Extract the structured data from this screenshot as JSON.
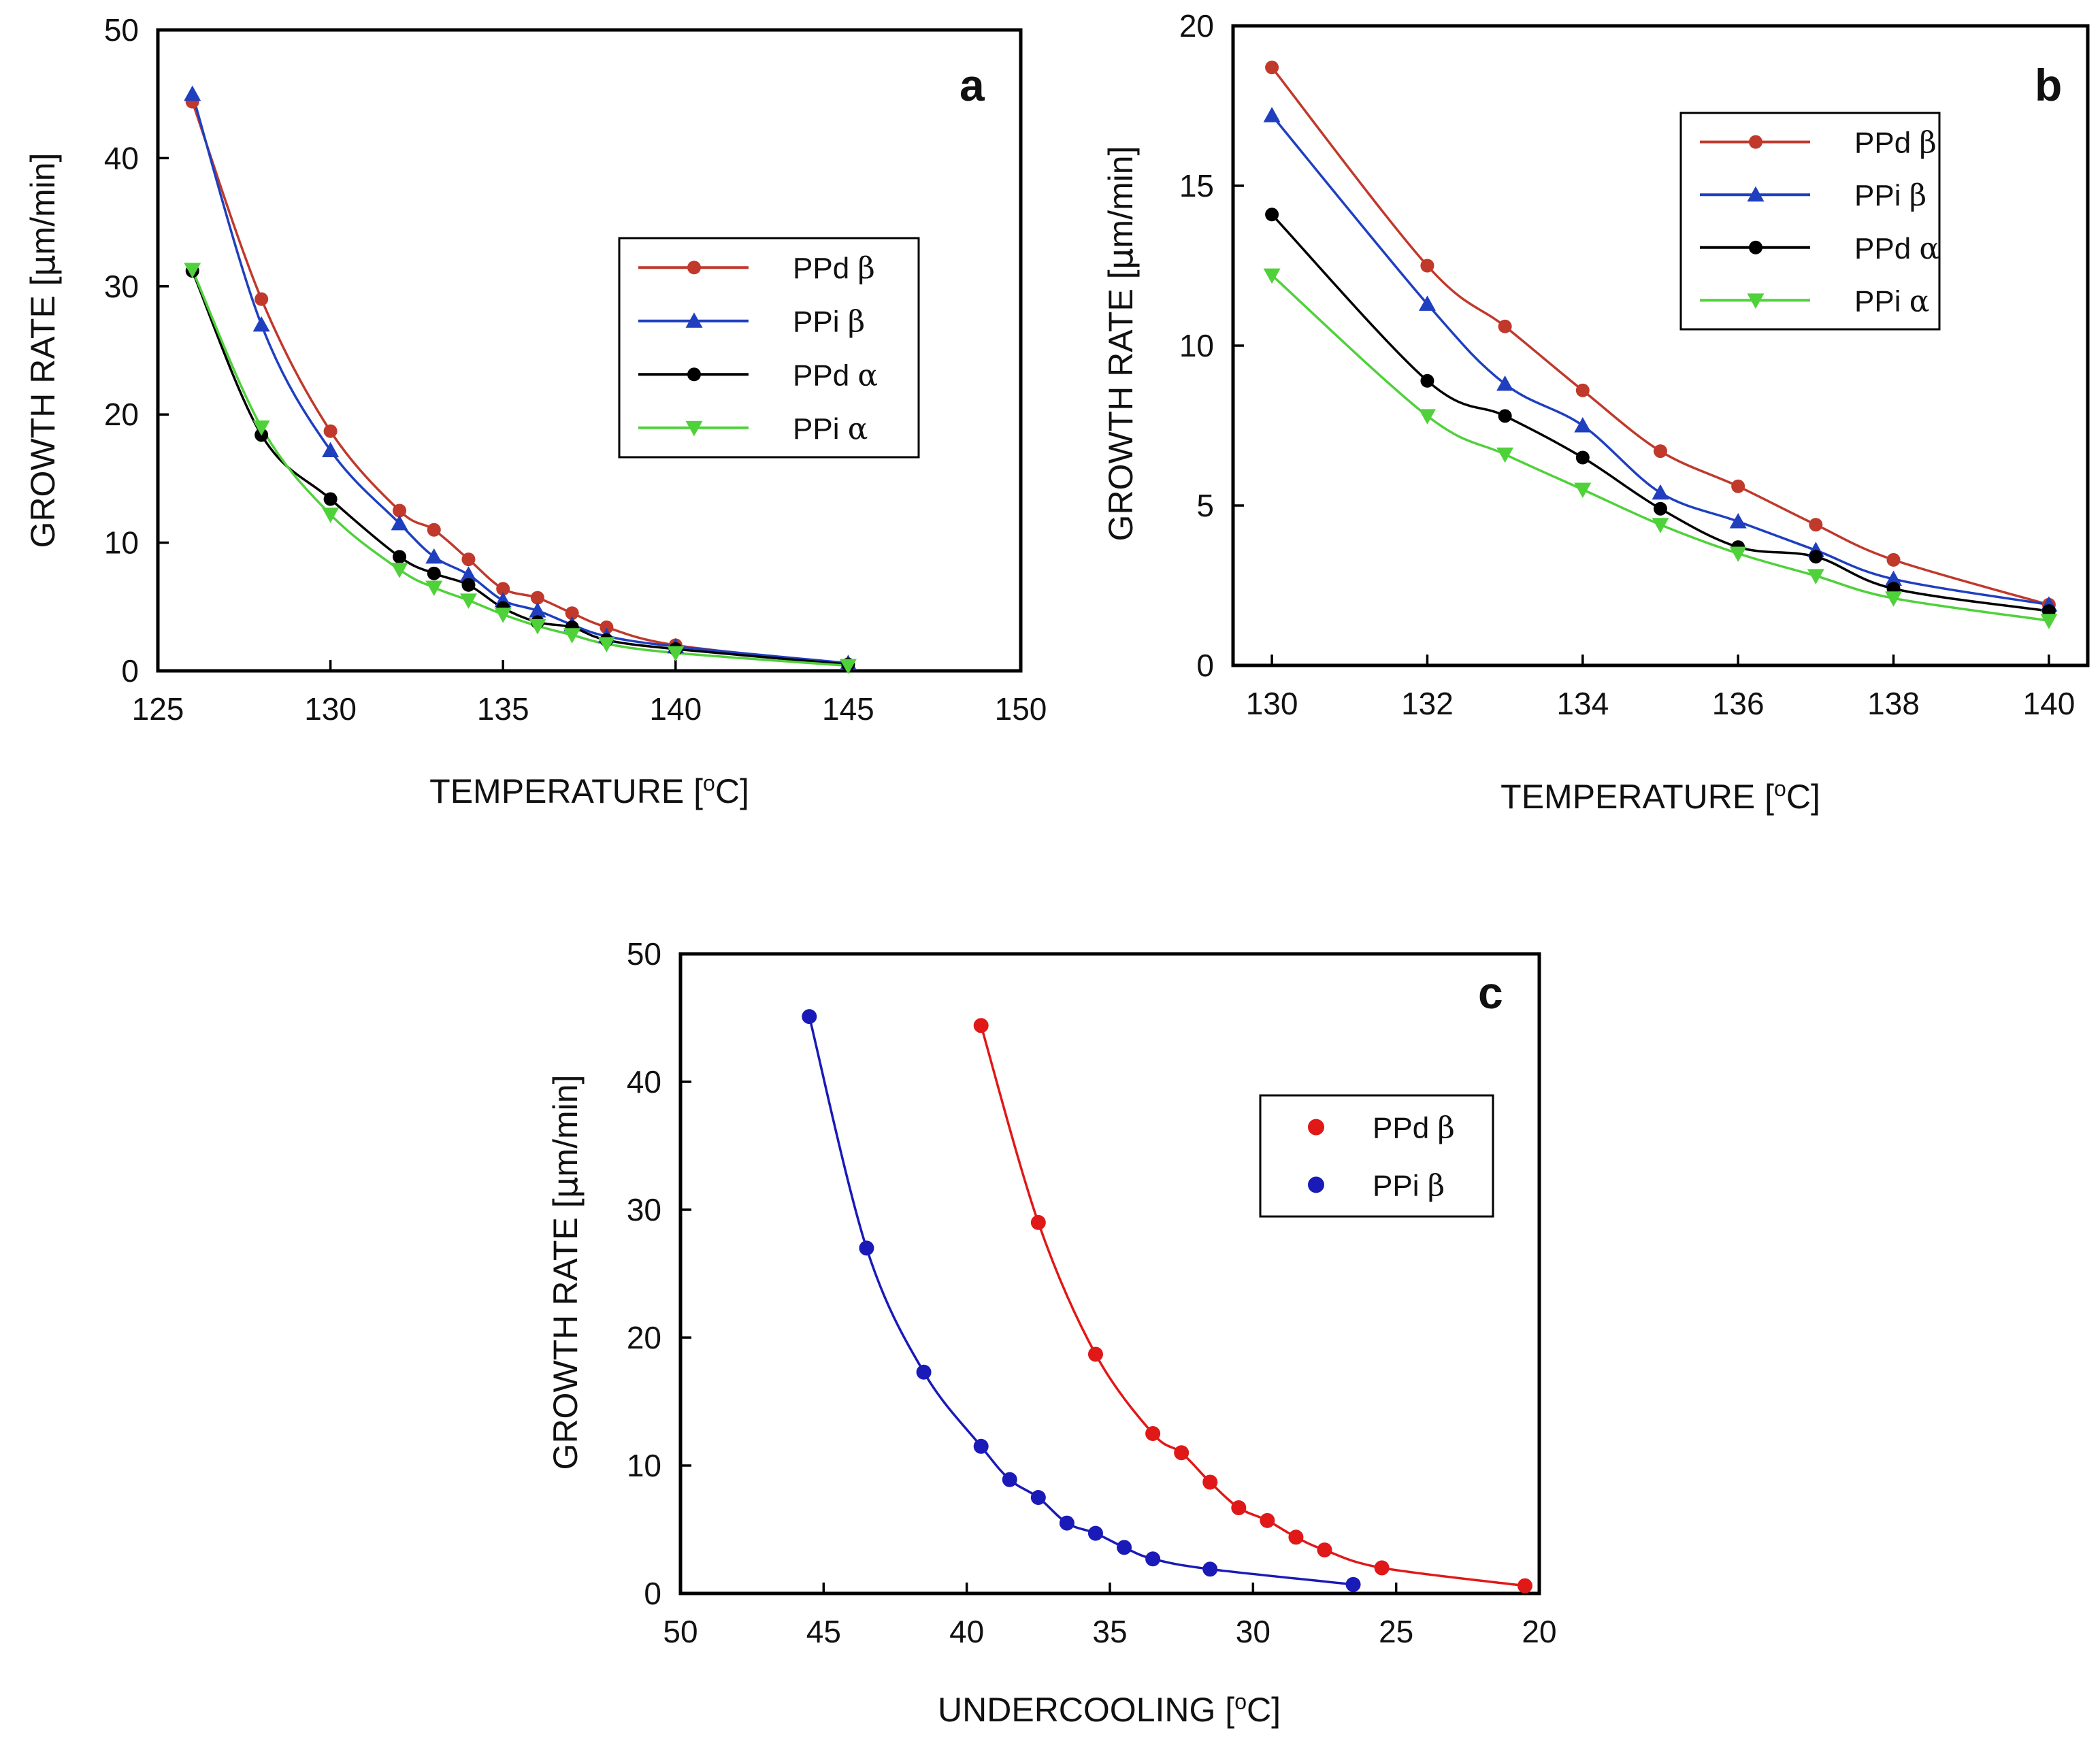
{
  "chart_data": [
    {
      "panel": "a",
      "type": "line",
      "xlabel": "TEMPERATURE [oC]",
      "ylabel": "GROWTH RATE [µm/min]",
      "xlim": [
        125,
        150
      ],
      "ylim": [
        0,
        50
      ],
      "xticks": [
        125,
        130,
        135,
        140,
        145,
        150
      ],
      "yticks": [
        0,
        10,
        20,
        30,
        40,
        50
      ],
      "legend_position": "upper-right",
      "series": [
        {
          "name": "PPd β",
          "label_base": "PPd ",
          "label_greek": "β",
          "color": "#c0392b",
          "marker": "circle",
          "x": [
            126,
            128,
            130,
            132,
            133,
            134,
            135,
            136,
            137,
            138,
            140,
            145
          ],
          "y": [
            44.4,
            29,
            18.7,
            12.5,
            11,
            8.7,
            6.4,
            5.7,
            4.5,
            3.4,
            2,
            0.5
          ]
        },
        {
          "name": "PPi β",
          "label_base": "PPi ",
          "label_greek": "β",
          "color": "#1f3fbf",
          "marker": "triangle",
          "x": [
            126,
            128,
            130,
            132,
            133,
            134,
            135,
            136,
            137,
            138,
            140,
            145
          ],
          "y": [
            45,
            27,
            17.2,
            11.5,
            8.9,
            7.5,
            5.5,
            4.7,
            3.6,
            2.7,
            1.9,
            0.6
          ]
        },
        {
          "name": "PPd α",
          "label_base": "PPd ",
          "label_greek": "α",
          "color": "#000000",
          "marker": "circle",
          "x": [
            126,
            128,
            130,
            132,
            133,
            134,
            135,
            136,
            137,
            138,
            140,
            145
          ],
          "y": [
            31.2,
            18.4,
            13.4,
            8.9,
            7.6,
            6.7,
            4.9,
            3.8,
            3.4,
            2.4,
            1.7,
            0.5
          ]
        },
        {
          "name": "PPi α",
          "label_base": "PPi ",
          "label_greek": "α",
          "color": "#4fd13a",
          "marker": "triangle-down",
          "x": [
            126,
            128,
            130,
            132,
            133,
            134,
            135,
            136,
            137,
            138,
            140,
            145
          ],
          "y": [
            31.3,
            19,
            12.2,
            7.9,
            6.5,
            5.5,
            4.4,
            3.5,
            2.8,
            2.1,
            1.4,
            0.4
          ]
        }
      ]
    },
    {
      "panel": "b",
      "type": "line",
      "xlabel": "TEMPERATURE [oC]",
      "ylabel": "GROWTH RATE [µm/min]",
      "xlim": [
        129.5,
        140.5
      ],
      "ylim": [
        0,
        20
      ],
      "xticks": [
        130,
        132,
        134,
        136,
        138,
        140
      ],
      "yticks": [
        0,
        5,
        10,
        15,
        20
      ],
      "legend_position": "upper-right",
      "series": [
        {
          "name": "PPd β",
          "label_base": "PPd ",
          "label_greek": "β",
          "color": "#c0392b",
          "marker": "circle",
          "x": [
            130,
            132,
            133,
            134,
            135,
            136,
            137,
            138,
            140
          ],
          "y": [
            18.7,
            12.5,
            10.6,
            8.6,
            6.7,
            5.6,
            4.4,
            3.3,
            1.9
          ]
        },
        {
          "name": "PPi β",
          "label_base": "PPi ",
          "label_greek": "β",
          "color": "#1f3fbf",
          "marker": "triangle",
          "x": [
            130,
            132,
            133,
            134,
            135,
            136,
            137,
            138,
            140
          ],
          "y": [
            17.2,
            11.3,
            8.8,
            7.5,
            5.4,
            4.5,
            3.6,
            2.7,
            1.9
          ]
        },
        {
          "name": "PPd α",
          "label_base": "PPd ",
          "label_greek": "α",
          "color": "#000000",
          "marker": "circle",
          "x": [
            130,
            132,
            133,
            134,
            135,
            136,
            137,
            138,
            140
          ],
          "y": [
            14.1,
            8.9,
            7.8,
            6.5,
            4.9,
            3.7,
            3.4,
            2.4,
            1.7
          ]
        },
        {
          "name": "PPi α",
          "label_base": "PPi ",
          "label_greek": "α",
          "color": "#4fd13a",
          "marker": "triangle-down",
          "x": [
            130,
            132,
            133,
            134,
            135,
            136,
            137,
            138,
            140
          ],
          "y": [
            12.2,
            7.8,
            6.6,
            5.5,
            4.4,
            3.5,
            2.8,
            2.1,
            1.4
          ]
        }
      ]
    },
    {
      "panel": "c",
      "type": "line",
      "xlabel": "UNDERCOOLING [oC]",
      "ylabel": "GROWTH RATE [µm/min]",
      "xlim": [
        50,
        20
      ],
      "ylim": [
        0,
        50
      ],
      "xticks": [
        50,
        45,
        40,
        35,
        30,
        25,
        20
      ],
      "yticks": [
        0,
        10,
        20,
        30,
        40,
        50
      ],
      "legend_position": "upper-right",
      "series": [
        {
          "name": "PPd β",
          "label_base": "PPd ",
          "label_greek": "β",
          "color": "#e01818",
          "marker": "circle",
          "x": [
            39.5,
            37.5,
            35.5,
            33.5,
            32.5,
            31.5,
            30.5,
            29.5,
            28.5,
            27.5,
            25.5,
            20.5
          ],
          "y": [
            44.4,
            29,
            18.7,
            12.5,
            11,
            8.7,
            6.7,
            5.7,
            4.4,
            3.4,
            2,
            0.6
          ]
        },
        {
          "name": "PPi β",
          "label_base": "PPi ",
          "label_greek": "β",
          "color": "#1a1ab8",
          "marker": "circle",
          "x": [
            45.5,
            43.5,
            41.5,
            39.5,
            38.5,
            37.5,
            36.5,
            35.5,
            34.5,
            33.5,
            31.5,
            26.5
          ],
          "y": [
            45.1,
            27,
            17.3,
            11.5,
            8.9,
            7.5,
            5.5,
            4.7,
            3.6,
            2.7,
            1.9,
            0.7
          ]
        }
      ]
    }
  ]
}
